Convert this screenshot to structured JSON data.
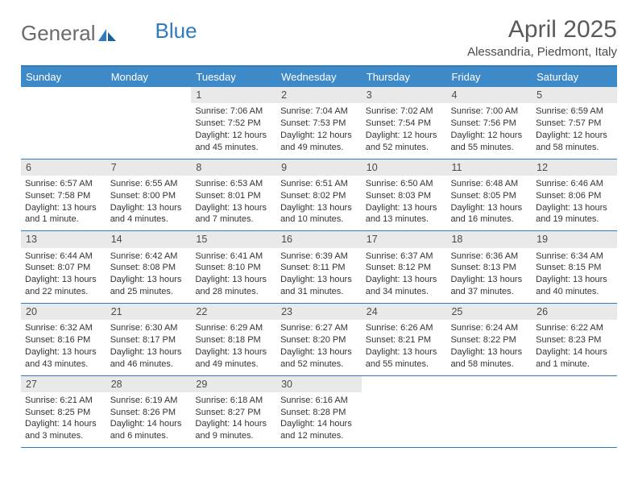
{
  "logo": {
    "part1": "General",
    "part2": "Blue"
  },
  "title": "April 2025",
  "location": "Alessandria, Piedmont, Italy",
  "colors": {
    "header_bg": "#3e8ac9",
    "border": "#2f7bbf",
    "daynum_bg": "#e9e9e9",
    "text": "#333333",
    "logo_gray": "#6a6a6a",
    "logo_blue": "#2f7bbf"
  },
  "weekdays": [
    "Sunday",
    "Monday",
    "Tuesday",
    "Wednesday",
    "Thursday",
    "Friday",
    "Saturday"
  ],
  "weeks": [
    {
      "days": [
        {
          "num": "",
          "sunrise": "",
          "sunset": "",
          "daylight": ""
        },
        {
          "num": "",
          "sunrise": "",
          "sunset": "",
          "daylight": ""
        },
        {
          "num": "1",
          "sunrise": "Sunrise: 7:06 AM",
          "sunset": "Sunset: 7:52 PM",
          "daylight": "Daylight: 12 hours and 45 minutes."
        },
        {
          "num": "2",
          "sunrise": "Sunrise: 7:04 AM",
          "sunset": "Sunset: 7:53 PM",
          "daylight": "Daylight: 12 hours and 49 minutes."
        },
        {
          "num": "3",
          "sunrise": "Sunrise: 7:02 AM",
          "sunset": "Sunset: 7:54 PM",
          "daylight": "Daylight: 12 hours and 52 minutes."
        },
        {
          "num": "4",
          "sunrise": "Sunrise: 7:00 AM",
          "sunset": "Sunset: 7:56 PM",
          "daylight": "Daylight: 12 hours and 55 minutes."
        },
        {
          "num": "5",
          "sunrise": "Sunrise: 6:59 AM",
          "sunset": "Sunset: 7:57 PM",
          "daylight": "Daylight: 12 hours and 58 minutes."
        }
      ]
    },
    {
      "days": [
        {
          "num": "6",
          "sunrise": "Sunrise: 6:57 AM",
          "sunset": "Sunset: 7:58 PM",
          "daylight": "Daylight: 13 hours and 1 minute."
        },
        {
          "num": "7",
          "sunrise": "Sunrise: 6:55 AM",
          "sunset": "Sunset: 8:00 PM",
          "daylight": "Daylight: 13 hours and 4 minutes."
        },
        {
          "num": "8",
          "sunrise": "Sunrise: 6:53 AM",
          "sunset": "Sunset: 8:01 PM",
          "daylight": "Daylight: 13 hours and 7 minutes."
        },
        {
          "num": "9",
          "sunrise": "Sunrise: 6:51 AM",
          "sunset": "Sunset: 8:02 PM",
          "daylight": "Daylight: 13 hours and 10 minutes."
        },
        {
          "num": "10",
          "sunrise": "Sunrise: 6:50 AM",
          "sunset": "Sunset: 8:03 PM",
          "daylight": "Daylight: 13 hours and 13 minutes."
        },
        {
          "num": "11",
          "sunrise": "Sunrise: 6:48 AM",
          "sunset": "Sunset: 8:05 PM",
          "daylight": "Daylight: 13 hours and 16 minutes."
        },
        {
          "num": "12",
          "sunrise": "Sunrise: 6:46 AM",
          "sunset": "Sunset: 8:06 PM",
          "daylight": "Daylight: 13 hours and 19 minutes."
        }
      ]
    },
    {
      "days": [
        {
          "num": "13",
          "sunrise": "Sunrise: 6:44 AM",
          "sunset": "Sunset: 8:07 PM",
          "daylight": "Daylight: 13 hours and 22 minutes."
        },
        {
          "num": "14",
          "sunrise": "Sunrise: 6:42 AM",
          "sunset": "Sunset: 8:08 PM",
          "daylight": "Daylight: 13 hours and 25 minutes."
        },
        {
          "num": "15",
          "sunrise": "Sunrise: 6:41 AM",
          "sunset": "Sunset: 8:10 PM",
          "daylight": "Daylight: 13 hours and 28 minutes."
        },
        {
          "num": "16",
          "sunrise": "Sunrise: 6:39 AM",
          "sunset": "Sunset: 8:11 PM",
          "daylight": "Daylight: 13 hours and 31 minutes."
        },
        {
          "num": "17",
          "sunrise": "Sunrise: 6:37 AM",
          "sunset": "Sunset: 8:12 PM",
          "daylight": "Daylight: 13 hours and 34 minutes."
        },
        {
          "num": "18",
          "sunrise": "Sunrise: 6:36 AM",
          "sunset": "Sunset: 8:13 PM",
          "daylight": "Daylight: 13 hours and 37 minutes."
        },
        {
          "num": "19",
          "sunrise": "Sunrise: 6:34 AM",
          "sunset": "Sunset: 8:15 PM",
          "daylight": "Daylight: 13 hours and 40 minutes."
        }
      ]
    },
    {
      "days": [
        {
          "num": "20",
          "sunrise": "Sunrise: 6:32 AM",
          "sunset": "Sunset: 8:16 PM",
          "daylight": "Daylight: 13 hours and 43 minutes."
        },
        {
          "num": "21",
          "sunrise": "Sunrise: 6:30 AM",
          "sunset": "Sunset: 8:17 PM",
          "daylight": "Daylight: 13 hours and 46 minutes."
        },
        {
          "num": "22",
          "sunrise": "Sunrise: 6:29 AM",
          "sunset": "Sunset: 8:18 PM",
          "daylight": "Daylight: 13 hours and 49 minutes."
        },
        {
          "num": "23",
          "sunrise": "Sunrise: 6:27 AM",
          "sunset": "Sunset: 8:20 PM",
          "daylight": "Daylight: 13 hours and 52 minutes."
        },
        {
          "num": "24",
          "sunrise": "Sunrise: 6:26 AM",
          "sunset": "Sunset: 8:21 PM",
          "daylight": "Daylight: 13 hours and 55 minutes."
        },
        {
          "num": "25",
          "sunrise": "Sunrise: 6:24 AM",
          "sunset": "Sunset: 8:22 PM",
          "daylight": "Daylight: 13 hours and 58 minutes."
        },
        {
          "num": "26",
          "sunrise": "Sunrise: 6:22 AM",
          "sunset": "Sunset: 8:23 PM",
          "daylight": "Daylight: 14 hours and 1 minute."
        }
      ]
    },
    {
      "days": [
        {
          "num": "27",
          "sunrise": "Sunrise: 6:21 AM",
          "sunset": "Sunset: 8:25 PM",
          "daylight": "Daylight: 14 hours and 3 minutes."
        },
        {
          "num": "28",
          "sunrise": "Sunrise: 6:19 AM",
          "sunset": "Sunset: 8:26 PM",
          "daylight": "Daylight: 14 hours and 6 minutes."
        },
        {
          "num": "29",
          "sunrise": "Sunrise: 6:18 AM",
          "sunset": "Sunset: 8:27 PM",
          "daylight": "Daylight: 14 hours and 9 minutes."
        },
        {
          "num": "30",
          "sunrise": "Sunrise: 6:16 AM",
          "sunset": "Sunset: 8:28 PM",
          "daylight": "Daylight: 14 hours and 12 minutes."
        },
        {
          "num": "",
          "sunrise": "",
          "sunset": "",
          "daylight": ""
        },
        {
          "num": "",
          "sunrise": "",
          "sunset": "",
          "daylight": ""
        },
        {
          "num": "",
          "sunrise": "",
          "sunset": "",
          "daylight": ""
        }
      ]
    }
  ]
}
